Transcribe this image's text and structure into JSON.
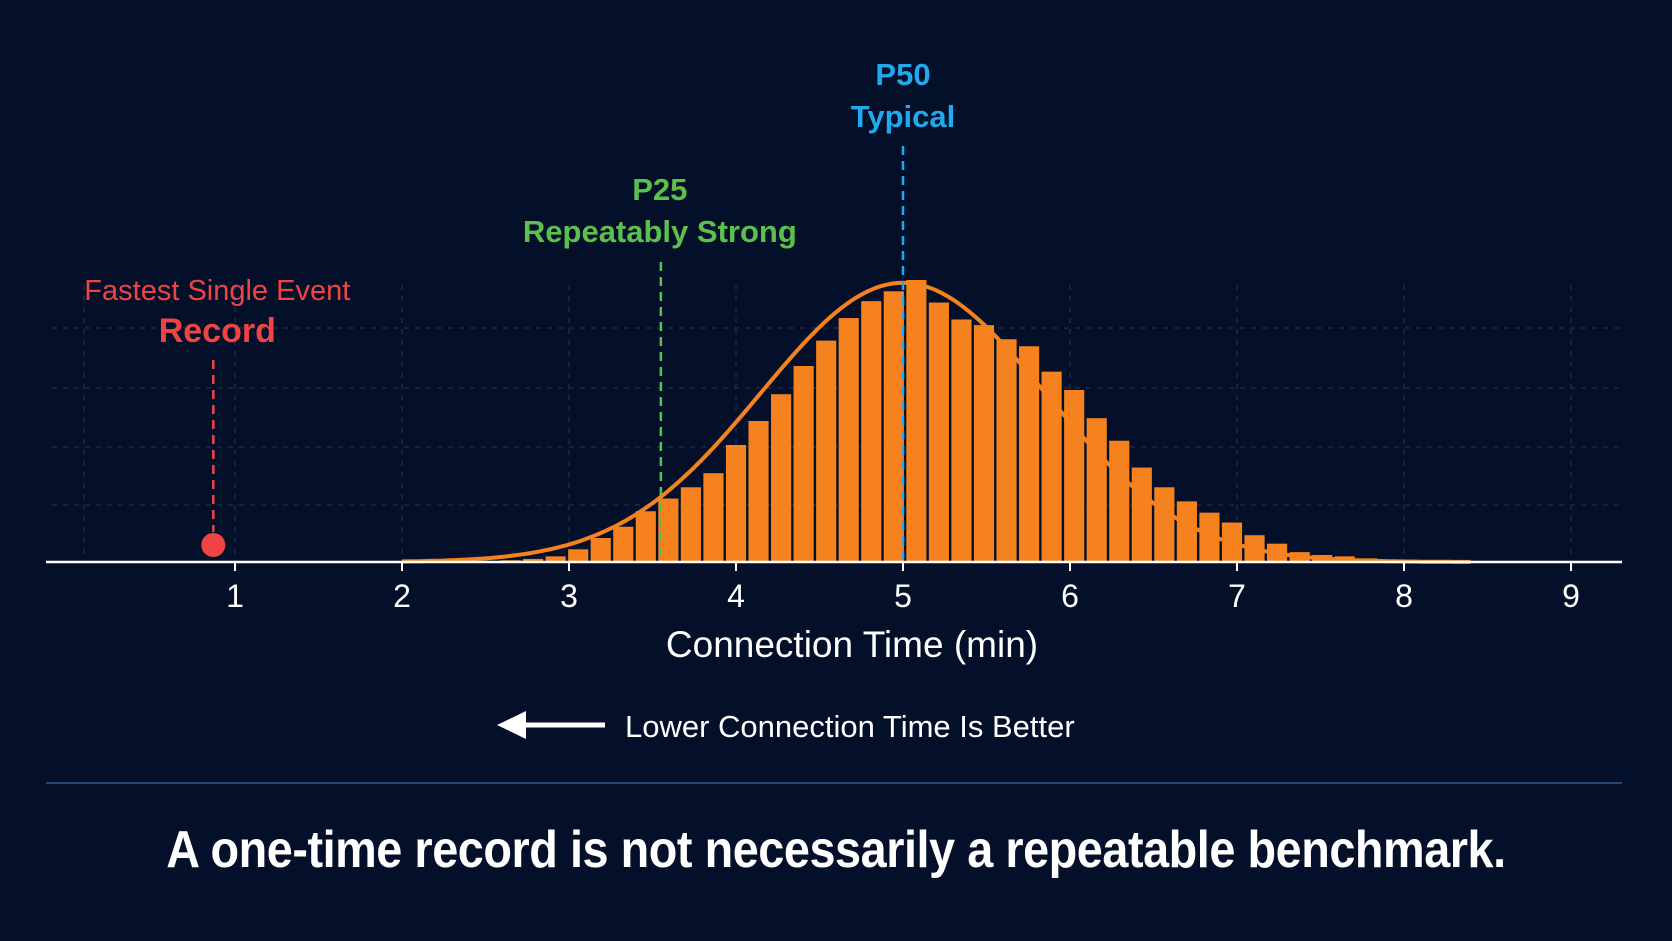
{
  "colors": {
    "background": "#04102a",
    "bars": "#f5821f",
    "curve": "#f5821f",
    "record": "#f04444",
    "p25": "#5cc04c",
    "p50": "#21a9ee",
    "axis": "#ffffff",
    "grid": "#2a3550",
    "divider": "#1d4a7a"
  },
  "chart_data": {
    "type": "bar",
    "xlabel": "Connection Time (min)",
    "xlim": [
      0,
      9.3
    ],
    "ylim": [
      0,
      100
    ],
    "x_ticks": [
      1,
      2,
      3,
      4,
      5,
      6,
      7,
      8,
      9
    ],
    "grid": "dashed-light",
    "bin_width": 0.135,
    "bars": {
      "x": [
        2.65,
        2.785,
        2.92,
        3.055,
        3.19,
        3.325,
        3.46,
        3.595,
        3.73,
        3.865,
        4.0,
        4.135,
        4.27,
        4.405,
        4.54,
        4.675,
        4.81,
        4.945,
        5.08,
        5.215,
        5.35,
        5.485,
        5.62,
        5.755,
        5.89,
        6.025,
        6.16,
        6.295,
        6.43,
        6.565,
        6.7,
        6.835,
        6.97,
        7.105,
        7.24,
        7.375,
        7.51,
        7.645,
        7.78,
        7.915
      ],
      "y": [
        0.6,
        1.1,
        2.0,
        4.5,
        8.5,
        12.5,
        18.0,
        22.5,
        26.5,
        31.5,
        41.5,
        50.0,
        59.5,
        69.5,
        78.5,
        86.5,
        92.5,
        96.0,
        100.0,
        92.0,
        86.0,
        84.0,
        79.0,
        76.5,
        67.5,
        61.0,
        51.0,
        43.0,
        33.5,
        26.5,
        21.5,
        17.5,
        14.0,
        9.5,
        6.5,
        3.5,
        2.5,
        2.0,
        1.3,
        0.8
      ]
    },
    "curve": {
      "mean": 5.0,
      "sd": 0.85,
      "peak": 99.0,
      "x_range": [
        2.0,
        8.4
      ]
    },
    "annotations": {
      "record": {
        "x": 0.87,
        "label_top": "Fastest Single Event",
        "label_bottom": "Record"
      },
      "p25": {
        "x": 3.55,
        "label_top": "P25",
        "label_bottom": "Repeatably Strong"
      },
      "p50": {
        "x": 5.0,
        "label_top": "P50",
        "label_bottom": "Typical"
      }
    },
    "direction_note": "Lower Connection Time Is Better"
  },
  "caption": "A one-time record is not necessarily a repeatable benchmark."
}
